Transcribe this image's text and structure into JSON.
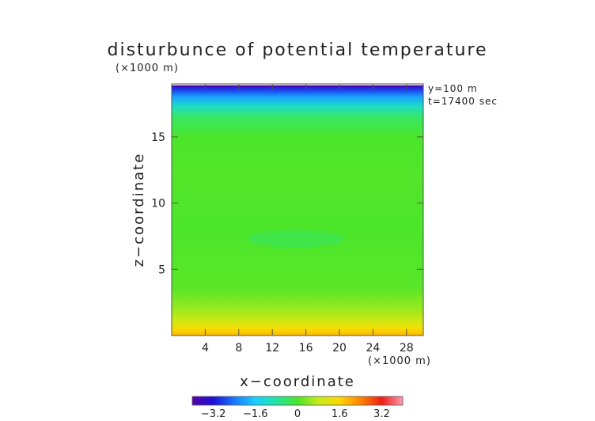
{
  "chart_data": {
    "type": "heatmap",
    "title": "disturbunce of potential temperature",
    "scale_label": "(×1000 m)",
    "info_lines": [
      "y=100 m",
      "t=17400 sec"
    ],
    "xlabel": "x−coordinate",
    "ylabel": "z−coordinate",
    "x_unit_label": "(×1000 m)",
    "xlim": [
      0,
      30
    ],
    "ylim": [
      0,
      19
    ],
    "x_ticks": [
      4,
      8,
      12,
      16,
      20,
      24,
      28
    ],
    "x_tick_labels": [
      "4",
      "8",
      "12",
      "16",
      "20",
      "24",
      "28"
    ],
    "y_ticks": [
      5,
      10,
      15
    ],
    "y_tick_labels": [
      "5",
      "10",
      "15"
    ],
    "field_profile": [
      {
        "z": 0.0,
        "value": 1.9
      },
      {
        "z": 0.5,
        "value": 1.5
      },
      {
        "z": 1.0,
        "value": 1.0
      },
      {
        "z": 2.0,
        "value": 0.5
      },
      {
        "z": 3.0,
        "value": 0.25
      },
      {
        "z": 3.5,
        "value": 0.1
      },
      {
        "z": 8.0,
        "value": 0.0
      },
      {
        "z": 12.0,
        "value": 0.05
      },
      {
        "z": 15.0,
        "value": 0.0
      },
      {
        "z": 16.5,
        "value": -0.4
      },
      {
        "z": 17.3,
        "value": -1.1
      },
      {
        "z": 18.0,
        "value": -2.0
      },
      {
        "z": 18.6,
        "value": -2.9
      },
      {
        "z": 18.85,
        "value": -3.6
      }
    ],
    "anomalies": [
      {
        "type": "ellipse",
        "x_center": 14.8,
        "z_center": 7.3,
        "x_halfwidth": 5.8,
        "z_halfwidth": 0.65,
        "value": -0.25
      }
    ],
    "colorbar": {
      "min": -4.0,
      "max": 4.0,
      "ticks": [
        -3.2,
        -1.6,
        0,
        1.6,
        3.2
      ],
      "tick_labels": [
        "−3.2",
        "−1.6",
        "0",
        "1.6",
        "3.2"
      ],
      "colors": [
        {
          "value": -4.0,
          "color": "#5a00a8"
        },
        {
          "value": -3.2,
          "color": "#1a10d8"
        },
        {
          "value": -2.4,
          "color": "#1a78ff"
        },
        {
          "value": -1.6,
          "color": "#18d0ff"
        },
        {
          "value": -0.8,
          "color": "#20e6a0"
        },
        {
          "value": 0.0,
          "color": "#4be52a"
        },
        {
          "value": 0.8,
          "color": "#c8ec18"
        },
        {
          "value": 1.6,
          "color": "#ffd800"
        },
        {
          "value": 2.4,
          "color": "#ff8400"
        },
        {
          "value": 3.2,
          "color": "#f21c12"
        },
        {
          "value": 4.0,
          "color": "#ff9ab4"
        }
      ]
    }
  }
}
